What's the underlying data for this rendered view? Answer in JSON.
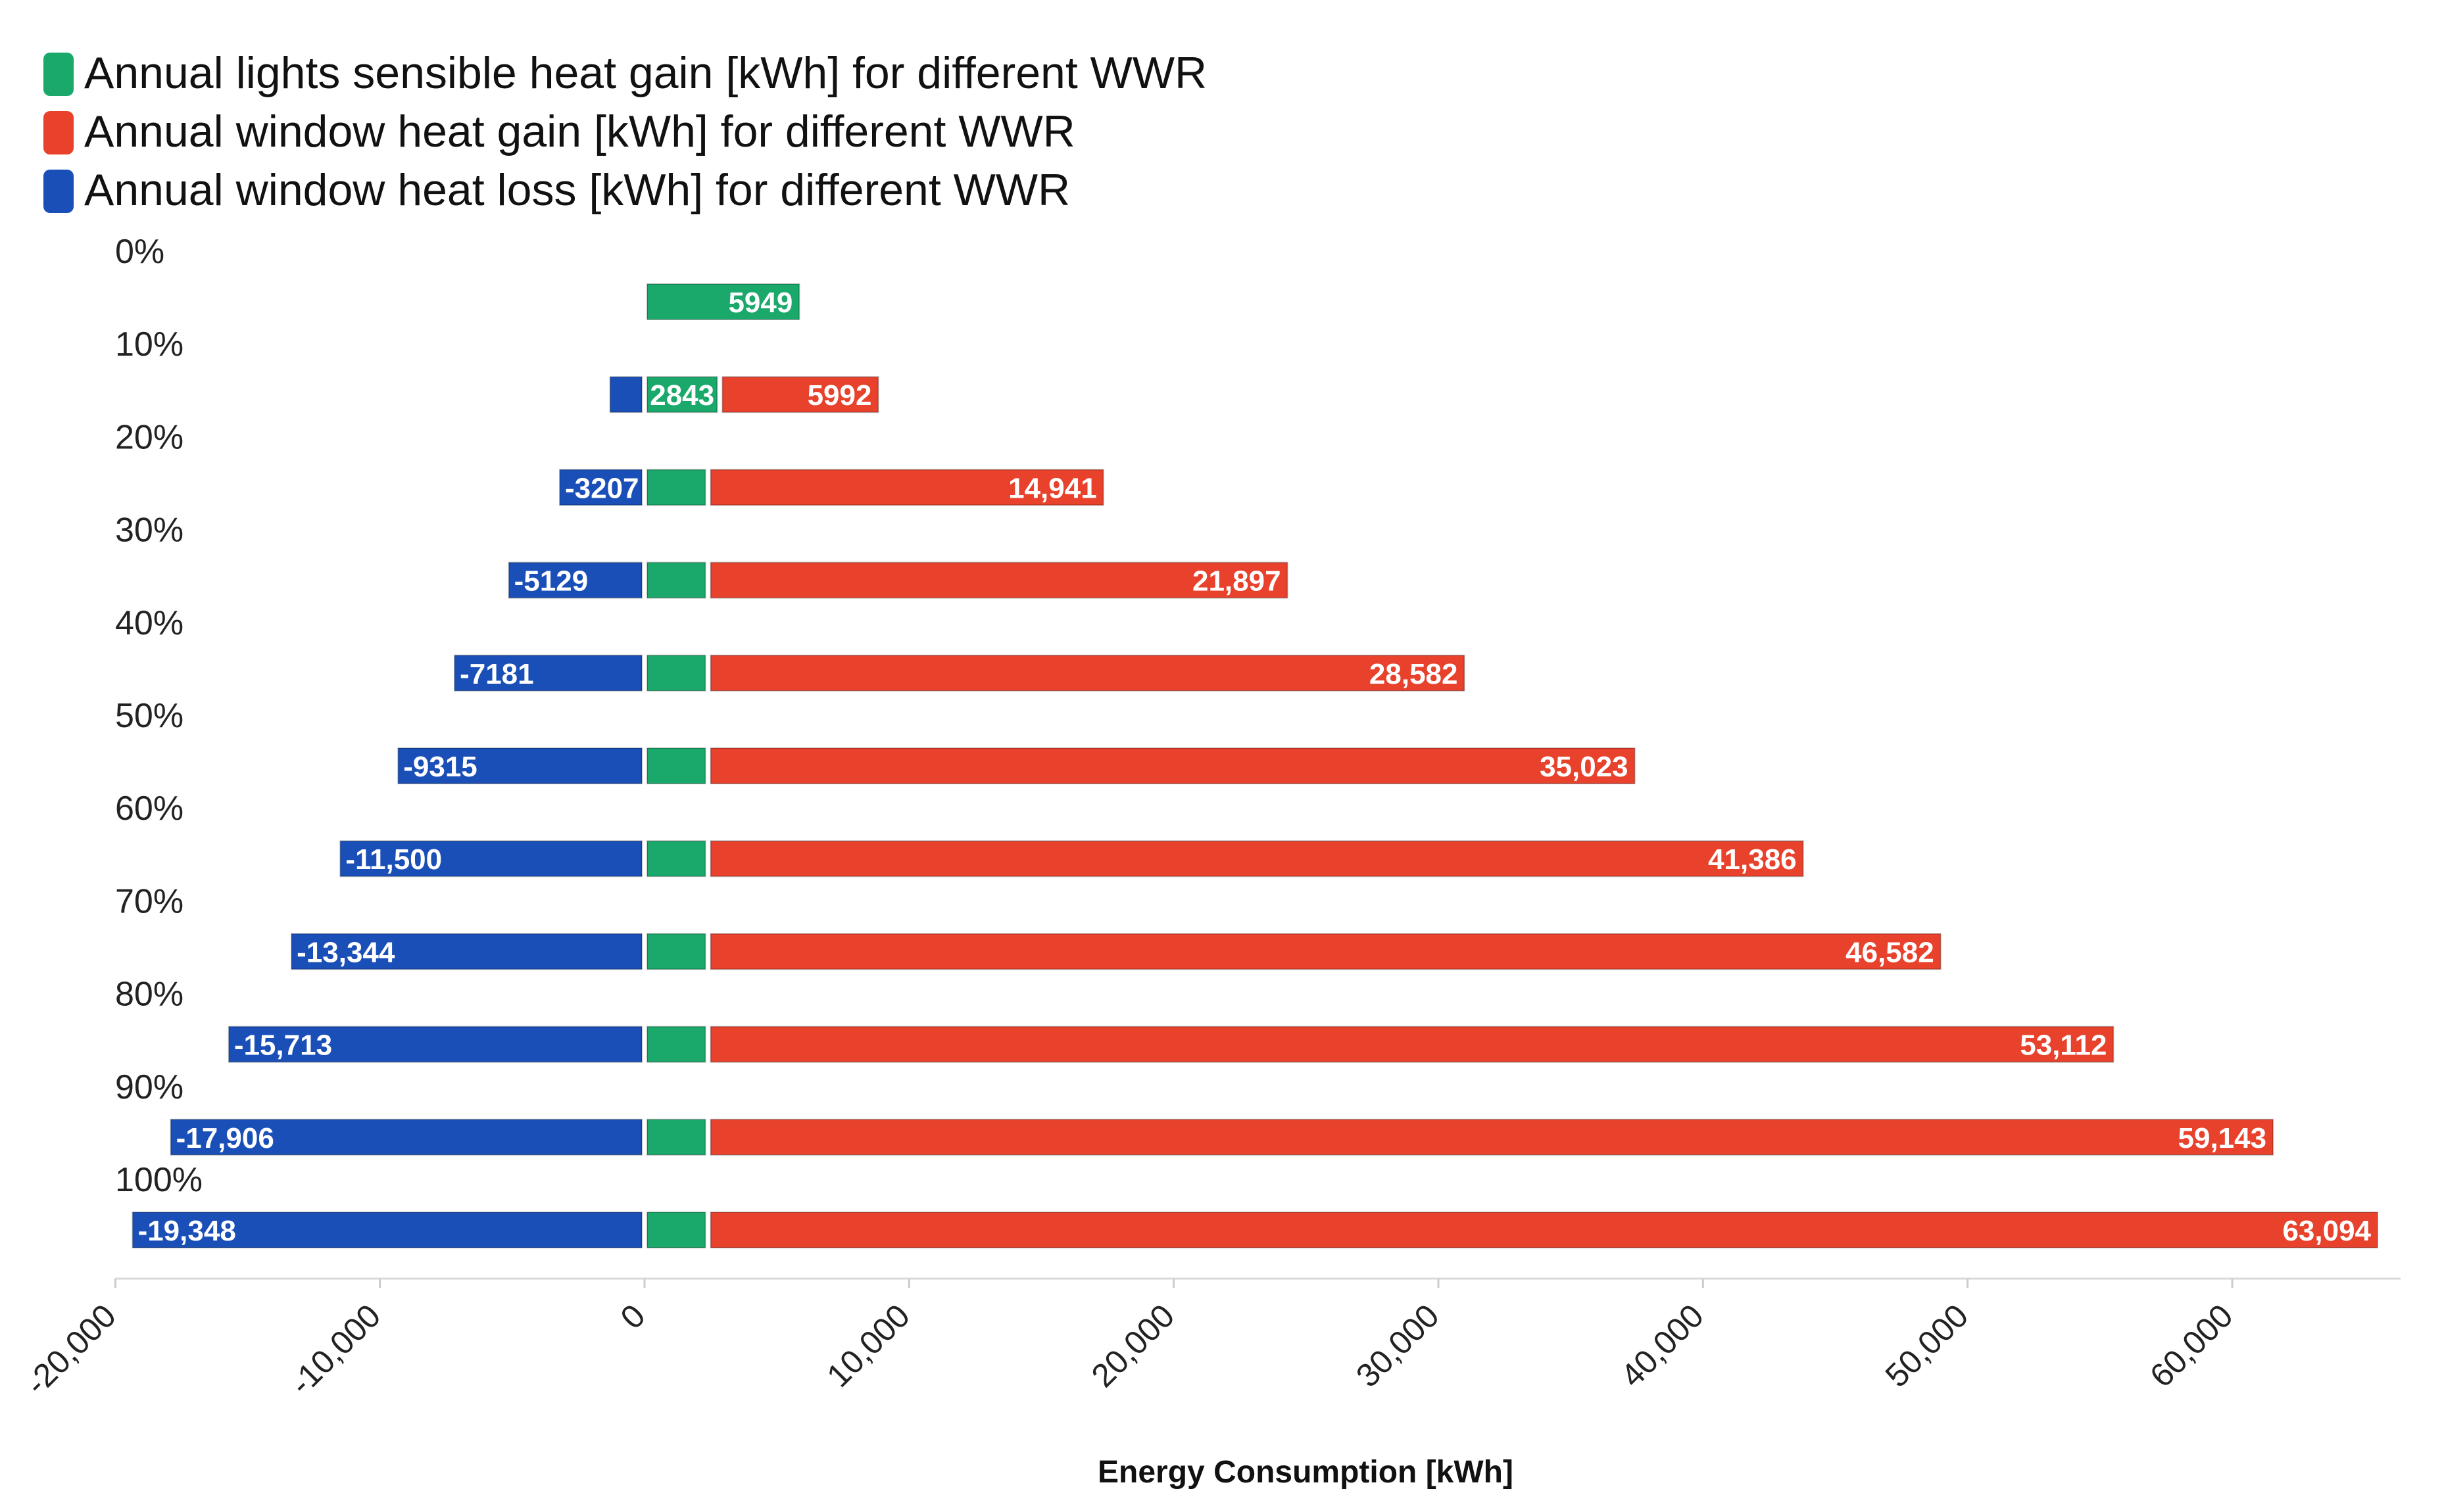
{
  "chart_data": {
    "type": "bar",
    "orientation": "horizontal",
    "stacked": true,
    "categories": [
      "0%",
      "10%",
      "20%",
      "30%",
      "40%",
      "50%",
      "60%",
      "70%",
      "80%",
      "90%",
      "100%"
    ],
    "series": [
      {
        "name": "Annual lights sensible heat gain [kWh] for different WWR",
        "color": "#1aa86b",
        "values": [
          5949,
          2843,
          2400,
          2400,
          2400,
          2400,
          2400,
          2400,
          2400,
          2400,
          2400
        ],
        "labels": [
          "5949",
          "2843",
          "",
          "",
          "",
          "",
          "",
          "",
          "",
          "",
          ""
        ]
      },
      {
        "name": "Annual window heat gain [kWh] for different WWR",
        "color": "#e8412c",
        "values": [
          0,
          5992,
          14941,
          21897,
          28582,
          35023,
          41386,
          46582,
          53112,
          59143,
          63094
        ],
        "labels": [
          "",
          "5992",
          "14,941",
          "21,897",
          "28,582",
          "35,023",
          "41,386",
          "46,582",
          "53,112",
          "59,143",
          "63,094"
        ]
      },
      {
        "name": "Annual window heat loss [kWh] for different WWR",
        "color": "#1a4fb8",
        "values": [
          0,
          -1300,
          -3207,
          -5129,
          -7181,
          -9315,
          -11500,
          -13344,
          -15713,
          -17906,
          -19348
        ],
        "labels": [
          "",
          "",
          "-3207",
          "-5129",
          "-7181",
          "-9315",
          "-11,500",
          "-13,344",
          "-15,713",
          "-17,906",
          "-19,348"
        ]
      }
    ],
    "xlabel": "Energy Consumption [kWh]",
    "ylabel": "",
    "xlim": [
      -20000,
      66000
    ],
    "xticks": [
      -20000,
      -10000,
      0,
      10000,
      20000,
      30000,
      40000,
      50000,
      60000
    ],
    "xtick_labels": [
      "-20,000",
      "-10,000",
      "0",
      "10,000",
      "20,000",
      "30,000",
      "40,000",
      "50,000",
      "60,000"
    ],
    "legend_position": "top-left",
    "grid": false
  }
}
